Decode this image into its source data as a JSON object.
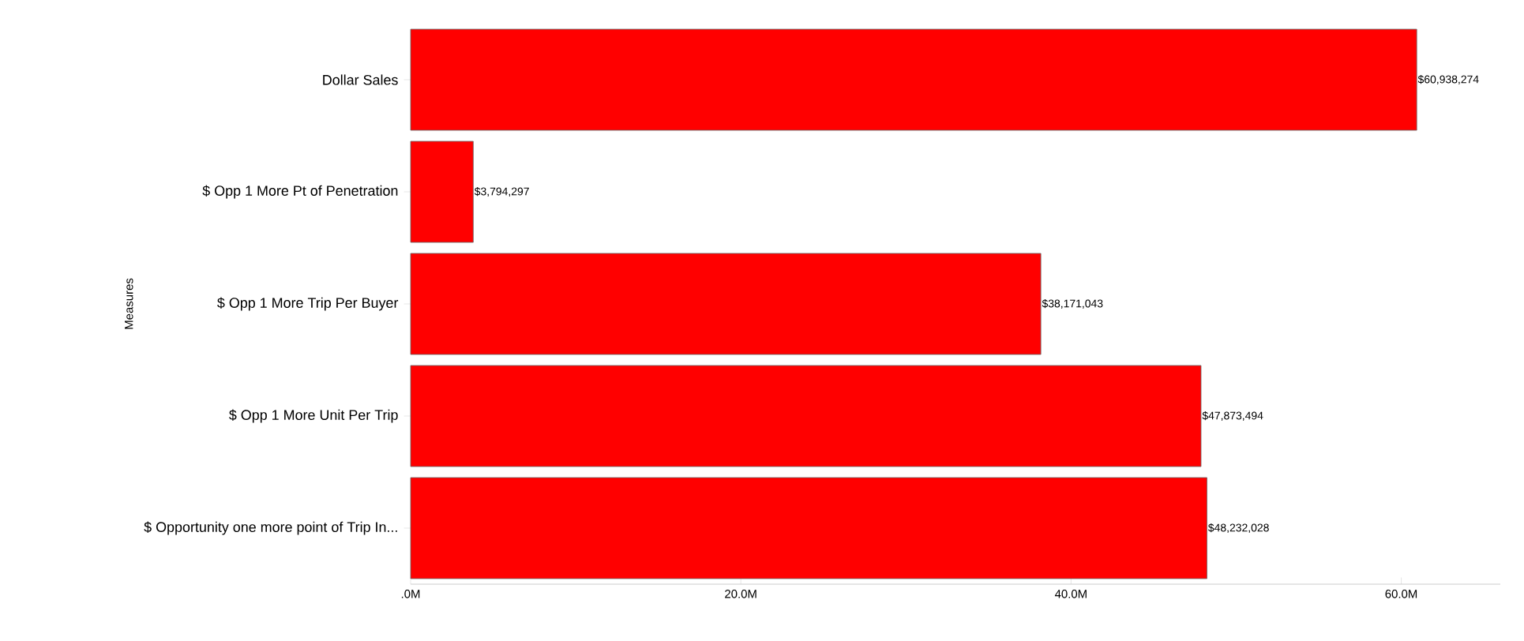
{
  "chart_data": {
    "type": "bar",
    "orientation": "horizontal",
    "ylabel": "Measures",
    "categories": [
      "Dollar Sales",
      "$ Opp 1 More Pt of Penetration",
      "$ Opp 1 More Trip Per Buyer",
      "$ Opp 1 More Unit Per Trip",
      "$ Opportunity one more point of Trip In..."
    ],
    "values": [
      60938274,
      3794297,
      38171043,
      47873494,
      48232028
    ],
    "value_labels": [
      "$60,938,274",
      "$3,794,297",
      "$38,171,043",
      "$47,873,494",
      "$48,232,028"
    ],
    "color": "#ff0000",
    "xlim": [
      0,
      66000000
    ],
    "xticks": [
      {
        "value": 0,
        "label": ".0M"
      },
      {
        "value": 20000000,
        "label": "20.0M"
      },
      {
        "value": 40000000,
        "label": "40.0M"
      },
      {
        "value": 60000000,
        "label": "60.0M"
      }
    ]
  }
}
